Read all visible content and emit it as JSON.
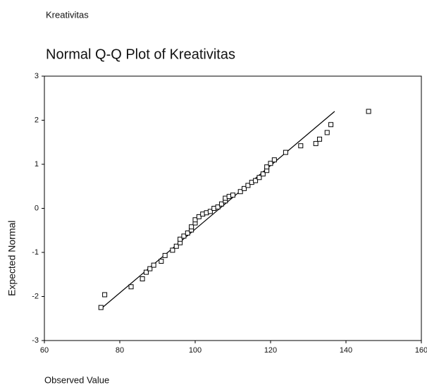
{
  "header": "Kreativitas",
  "chart_data": {
    "type": "qq",
    "title": "Normal Q-Q Plot of Kreativitas",
    "x_label": "Observed Value",
    "y_label": "Expected Normal",
    "x": [
      75,
      76,
      83,
      86,
      87,
      88,
      89,
      91,
      92,
      94,
      95,
      96,
      96,
      97,
      98,
      99,
      99,
      100,
      100,
      101,
      102,
      103,
      104,
      105,
      106,
      107,
      108,
      108,
      109,
      110,
      112,
      113,
      114,
      115,
      116,
      117,
      118,
      119,
      119,
      120,
      121,
      124,
      128,
      132,
      133,
      135,
      136,
      146
    ],
    "y": [
      -2.25,
      -1.96,
      -1.78,
      -1.6,
      -1.45,
      -1.37,
      -1.29,
      -1.2,
      -1.07,
      -0.95,
      -0.86,
      -0.78,
      -0.7,
      -0.63,
      -0.56,
      -0.49,
      -0.42,
      -0.33,
      -0.26,
      -0.19,
      -0.13,
      -0.1,
      -0.07,
      0.0,
      0.03,
      0.1,
      0.17,
      0.23,
      0.27,
      0.3,
      0.38,
      0.45,
      0.52,
      0.59,
      0.63,
      0.7,
      0.78,
      0.86,
      0.94,
      1.02,
      1.1,
      1.27,
      1.42,
      1.47,
      1.57,
      1.72,
      1.9,
      2.2
    ],
    "reference_line": {
      "x": [
        75,
        137
      ],
      "y": [
        -2.28,
        2.2
      ]
    },
    "color": "#000000",
    "xlim": [
      60,
      160
    ],
    "xticks": [
      60,
      80,
      100,
      120,
      140,
      160
    ],
    "ylim": [
      -3,
      3
    ],
    "yticks": [
      -3,
      -2,
      -1,
      0,
      1,
      2,
      3
    ]
  }
}
